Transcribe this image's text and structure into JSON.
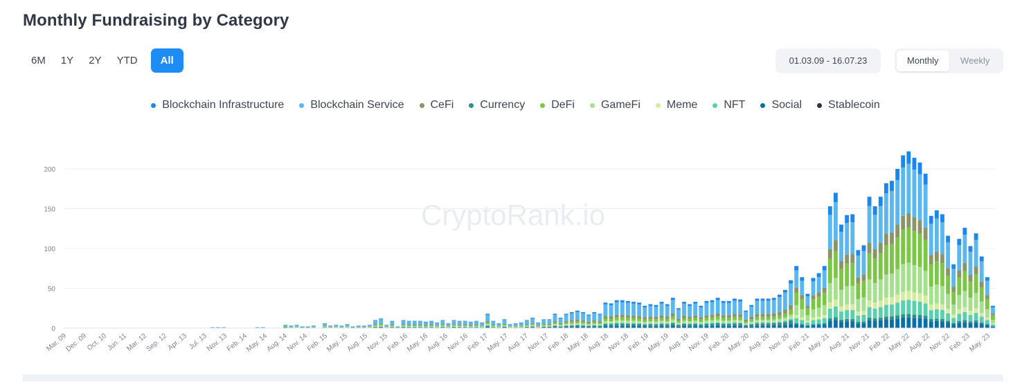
{
  "header": {
    "title": "Monthly Fundraising by Category"
  },
  "periods": [
    {
      "label": "6M",
      "active": false
    },
    {
      "label": "1Y",
      "active": false
    },
    {
      "label": "2Y",
      "active": false
    },
    {
      "label": "YTD",
      "active": false
    },
    {
      "label": "All",
      "active": true
    }
  ],
  "date_range": "01.03.09 - 16.07.23",
  "granularity": [
    {
      "label": "Monthly",
      "active": true
    },
    {
      "label": "Weekly",
      "active": false
    }
  ],
  "watermark": "CryptoRank.io",
  "colors": {
    "Blockchain Infrastructure": "#1a86ee",
    "Blockchain Service": "#5bb8ee",
    "CeFi": "#8b9468",
    "Currency": "#2e8f8c",
    "DeFi": "#7cc646",
    "GameFi": "#a5e08c",
    "Meme": "#d3ec9e",
    "NFT": "#58d0ad",
    "Social": "#0a6fa6",
    "Stablecoin": "#2b3340"
  },
  "chart_data": {
    "type": "bar",
    "stacked": true,
    "ylim": [
      0,
      230
    ],
    "yticks": [
      0,
      50,
      100,
      150,
      200
    ],
    "grid": true,
    "legend_position": "top-center",
    "legend": [
      "Blockchain Infrastructure",
      "Blockchain Service",
      "CeFi",
      "Currency",
      "DeFi",
      "GameFi",
      "Meme",
      "NFT",
      "Social",
      "Stablecoin"
    ],
    "xtick_labels": [
      "Mar. 09",
      "Dec. 09",
      "Oct. 10",
      "Jun. 11",
      "Mar. 12",
      "Sep. 12",
      "Apr. 13",
      "Jul. 13",
      "Nov. 13",
      "Feb. 14",
      "May. 14",
      "Aug. 14",
      "Nov. 14",
      "Feb. 15",
      "May. 15",
      "Aug. 15",
      "Nov. 15",
      "Feb. 16",
      "May. 16",
      "Aug. 16",
      "Nov. 16",
      "Feb. 17",
      "May. 17",
      "Aug. 17",
      "Nov. 17",
      "Feb. 18",
      "May. 18",
      "Aug. 18",
      "Nov. 18",
      "Feb. 19",
      "May. 19",
      "Aug. 19",
      "Nov. 19",
      "Feb. 20",
      "May. 20",
      "Aug. 20",
      "Nov. 20",
      "Feb. 21",
      "May. 21",
      "Aug. 21",
      "Nov. 21",
      "Feb. 22",
      "May. 22",
      "Aug. 22",
      "Nov. 22",
      "Feb. 23",
      "May. 23"
    ],
    "series_order": [
      "Social",
      "Currency",
      "NFT",
      "Meme",
      "GameFi",
      "DeFi",
      "CeFi",
      "Blockchain Service",
      "Blockchain Infrastructure"
    ],
    "totals": [
      0,
      0,
      0,
      0,
      0,
      0,
      0,
      0,
      0,
      0,
      0,
      0,
      0,
      0,
      0,
      0,
      0,
      0,
      0,
      0,
      0,
      0,
      0,
      0,
      0,
      0,
      1,
      1,
      1,
      0,
      0,
      0,
      0,
      0,
      1,
      1,
      0,
      0,
      0,
      4,
      3,
      4,
      2,
      2,
      3,
      0,
      6,
      3,
      4,
      3,
      5,
      2,
      3,
      3,
      4,
      10,
      12,
      4,
      9,
      2,
      10,
      9,
      9,
      9,
      8,
      9,
      7,
      10,
      6,
      10,
      9,
      9,
      8,
      9,
      7,
      18,
      9,
      6,
      11,
      5,
      6,
      7,
      10,
      13,
      7,
      11,
      11,
      18,
      13,
      18,
      20,
      22,
      20,
      17,
      20,
      18,
      32,
      31,
      35,
      35,
      34,
      33,
      32,
      28,
      30,
      29,
      33,
      30,
      38,
      25,
      33,
      30,
      33,
      28,
      34,
      35,
      38,
      34,
      34,
      37,
      36,
      22,
      29,
      37,
      37,
      37,
      38,
      42,
      48,
      60,
      78,
      64,
      43,
      63,
      69,
      78,
      153,
      170,
      130,
      142,
      143,
      98,
      104,
      165,
      153,
      165,
      182,
      185,
      200,
      217,
      222,
      214,
      208,
      194,
      141,
      148,
      143,
      116,
      80,
      112,
      126,
      103,
      119,
      90,
      64,
      28
    ],
    "composition_note": "per-bar shares by era; values read as stacked totals",
    "composition": {
      "early": {
        "Social": 0.05,
        "Currency": 0.25,
        "NFT": 0.05,
        "Meme": 0.0,
        "GameFi": 0.03,
        "DeFi": 0.05,
        "CeFi": 0.17,
        "Blockchain Service": 0.3,
        "Blockchain Infrastructure": 0.1
      },
      "mid": {
        "Social": 0.08,
        "Currency": 0.08,
        "NFT": 0.04,
        "Meme": 0.02,
        "GameFi": 0.06,
        "DeFi": 0.1,
        "CeFi": 0.1,
        "Blockchain Service": 0.45,
        "Blockchain Infrastructure": 0.07
      },
      "late": {
        "Social": 0.06,
        "Currency": 0.02,
        "NFT": 0.08,
        "Meme": 0.05,
        "GameFi": 0.16,
        "DeFi": 0.2,
        "CeFi": 0.08,
        "Blockchain Service": 0.28,
        "Blockchain Infrastructure": 0.07
      }
    }
  }
}
